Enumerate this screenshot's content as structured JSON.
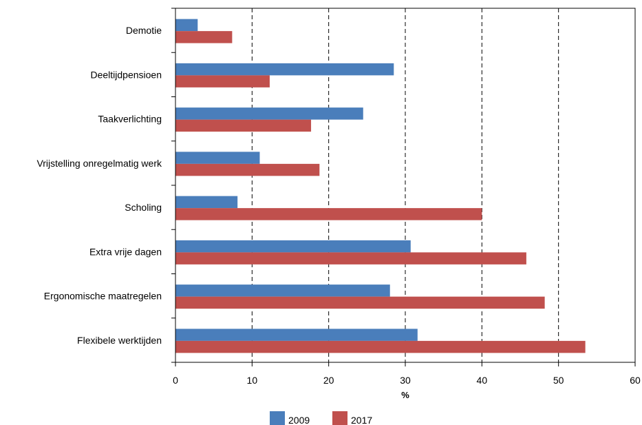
{
  "chart_data": {
    "type": "bar",
    "orientation": "horizontal",
    "categories": [
      "Demotie",
      "Deeltijdpensioen",
      "Taakverlichting",
      "Vrijstelling onregelmatig werk",
      "Scholing",
      "Extra vrije dagen",
      "Ergonomische maatregelen",
      "Flexibele werktijden"
    ],
    "series": [
      {
        "name": "2009",
        "color": "#4a7ebb",
        "values": [
          2.9,
          28.5,
          24.5,
          11.0,
          8.1,
          30.7,
          28.0,
          31.6
        ]
      },
      {
        "name": "2017",
        "color": "#c0504d",
        "values": [
          7.4,
          12.3,
          17.7,
          18.8,
          40.0,
          45.8,
          48.2,
          53.5
        ]
      }
    ],
    "xlabel": "%",
    "ylabel": "",
    "xlim": [
      0,
      60
    ],
    "xticks": [
      "0",
      "10",
      "20",
      "30",
      "40",
      "50",
      "60"
    ],
    "grid": "vertical-dashed",
    "legend_position": "bottom"
  }
}
